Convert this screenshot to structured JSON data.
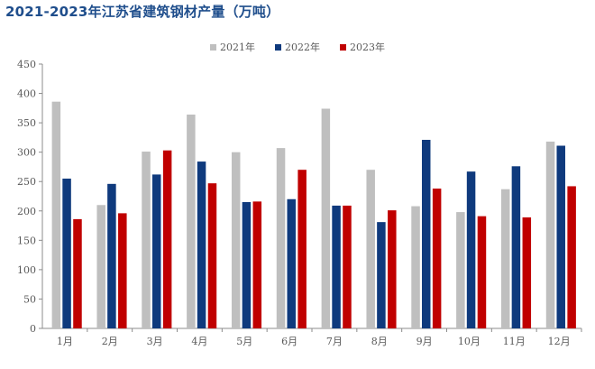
{
  "chart_data": {
    "type": "bar",
    "title": "2021-2023年江苏省建筑钢材产量（万吨）",
    "categories": [
      "1月",
      "2月",
      "3月",
      "4月",
      "5月",
      "6月",
      "7月",
      "8月",
      "9月",
      "10月",
      "11月",
      "12月"
    ],
    "series": [
      {
        "name": "2021年",
        "color": "#bfbfbf",
        "values": [
          386,
          210,
          301,
          364,
          300,
          307,
          374,
          270,
          208,
          198,
          237,
          318
        ]
      },
      {
        "name": "2022年",
        "color": "#0f3a7d",
        "values": [
          255,
          246,
          262,
          284,
          215,
          220,
          209,
          181,
          321,
          267,
          276,
          311
        ]
      },
      {
        "name": "2023年",
        "color": "#c00000",
        "values": [
          186,
          196,
          303,
          247,
          216,
          270,
          209,
          201,
          238,
          191,
          189,
          242
        ]
      }
    ],
    "ylim": [
      0,
      450
    ],
    "yticks": [
      0,
      50,
      100,
      150,
      200,
      250,
      300,
      350,
      400,
      450
    ],
    "grid": false,
    "legend_position": "top-center"
  }
}
